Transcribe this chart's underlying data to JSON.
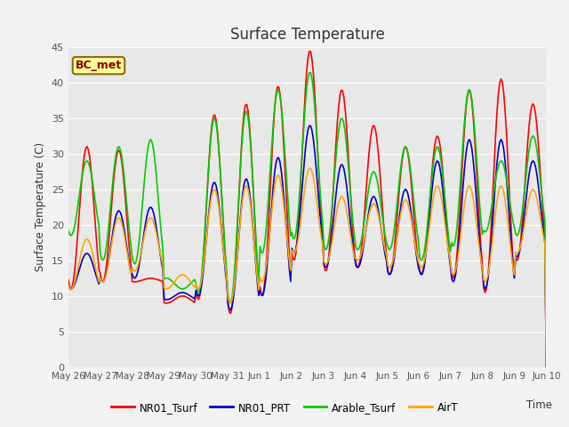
{
  "title": "Surface Temperature",
  "ylabel": "Surface Temperature (C)",
  "xlabel": "Time",
  "annotation": "BC_met",
  "annotation_color": "#8B0000",
  "annotation_bg": "#FFFF99",
  "ylim": [
    0,
    45
  ],
  "yticks": [
    0,
    5,
    10,
    15,
    20,
    25,
    30,
    35,
    40,
    45
  ],
  "xtick_labels": [
    "May 26",
    "May 27",
    "May 28",
    "May 29",
    "May 30",
    "May 31",
    "Jun 1",
    "Jun 2",
    "Jun 3",
    "Jun 4",
    "Jun 5",
    "Jun 6",
    "Jun 7",
    "Jun 8",
    "Jun 9",
    "Jun 10"
  ],
  "colors": {
    "NR01_Tsurf": "#FF0000",
    "NR01_PRT": "#0000CC",
    "Arable_Tsurf": "#00CC00",
    "AirT": "#FFA500"
  },
  "legend_labels": [
    "NR01_Tsurf",
    "NR01_PRT",
    "Arable_Tsurf",
    "AirT"
  ],
  "fig_bg": "#F2F2F2",
  "plot_bg": "#E8E8E8",
  "grid_color": "#FFFFFF",
  "linewidth": 1.2,
  "peaks_surf": [
    31,
    30.5,
    12.5,
    10,
    35.5,
    37,
    39.5,
    44.5,
    39,
    34,
    31,
    32.5,
    39,
    40.5,
    37
  ],
  "troughs_surf": [
    11,
    12,
    12,
    9,
    9.5,
    7.5,
    10,
    15,
    13.5,
    14,
    13,
    13,
    12.5,
    10.5,
    15
  ],
  "peaks_prt": [
    16,
    22,
    22.5,
    10.5,
    26,
    26.5,
    29.5,
    34,
    28.5,
    24,
    25,
    29,
    32,
    32,
    29
  ],
  "troughs_prt": [
    11,
    12,
    12.5,
    9.5,
    10,
    8,
    10,
    16,
    14,
    14,
    13,
    13,
    12,
    11,
    15.5
  ],
  "peaks_arable": [
    29,
    31,
    32,
    11,
    35,
    36,
    39,
    41.5,
    35,
    27.5,
    31,
    31,
    39,
    29,
    32.5
  ],
  "troughs_arable": [
    18.5,
    15,
    14.5,
    12.5,
    10.5,
    9,
    16,
    18,
    16.5,
    16.5,
    16.5,
    15,
    17,
    19,
    18.5
  ],
  "peaks_air": [
    18,
    21,
    21,
    13,
    25,
    25.5,
    27,
    28,
    24,
    23,
    23.5,
    25.5,
    25.5,
    25.5,
    25
  ],
  "troughs_air": [
    11,
    12,
    13.5,
    11,
    11,
    9,
    12,
    16,
    14.5,
    15,
    14,
    14,
    13,
    12,
    16
  ]
}
